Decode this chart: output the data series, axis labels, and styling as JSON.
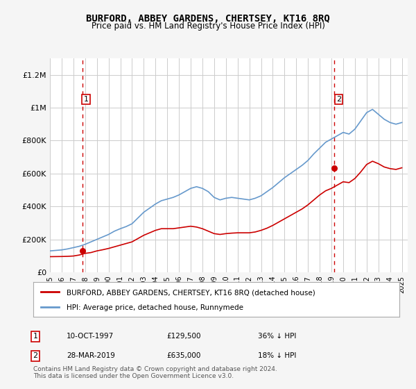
{
  "title": "BURFORD, ABBEY GARDENS, CHERTSEY, KT16 8RQ",
  "subtitle": "Price paid vs. HM Land Registry's House Price Index (HPI)",
  "legend_line1": "BURFORD, ABBEY GARDENS, CHERTSEY, KT16 8RQ (detached house)",
  "legend_line2": "HPI: Average price, detached house, Runnymede",
  "annotation1_label": "1",
  "annotation1_date": "10-OCT-1997",
  "annotation1_price": "£129,500",
  "annotation1_hpi": "36% ↓ HPI",
  "annotation2_label": "2",
  "annotation2_date": "28-MAR-2019",
  "annotation2_price": "£635,000",
  "annotation2_hpi": "18% ↓ HPI",
  "footer": "Contains HM Land Registry data © Crown copyright and database right 2024.\nThis data is licensed under the Open Government Licence v3.0.",
  "hpi_color": "#6699cc",
  "price_color": "#cc0000",
  "dashed_line_color": "#cc0000",
  "background_color": "#f5f5f5",
  "plot_bg_color": "#ffffff",
  "grid_color": "#cccccc",
  "ylim": [
    0,
    1300000
  ],
  "yticks": [
    0,
    200000,
    400000,
    600000,
    800000,
    1000000,
    1200000
  ],
  "ytick_labels": [
    "£0",
    "£200K",
    "£400K",
    "£600K",
    "£800K",
    "£1M",
    "£1.2M"
  ],
  "sale1_x": 1997.77,
  "sale1_y": 129500,
  "sale2_x": 2019.23,
  "sale2_y": 635000,
  "hpi_x": [
    1995,
    1995.5,
    1996,
    1996.5,
    1997,
    1997.5,
    1998,
    1998.5,
    1999,
    1999.5,
    2000,
    2000.5,
    2001,
    2001.5,
    2002,
    2002.5,
    2003,
    2003.5,
    2004,
    2004.5,
    2005,
    2005.5,
    2006,
    2006.5,
    2007,
    2007.5,
    2008,
    2008.5,
    2009,
    2009.5,
    2010,
    2010.5,
    2011,
    2011.5,
    2012,
    2012.5,
    2013,
    2013.5,
    2014,
    2014.5,
    2015,
    2015.5,
    2016,
    2016.5,
    2017,
    2017.5,
    2018,
    2018.5,
    2019,
    2019.5,
    2020,
    2020.5,
    2021,
    2021.5,
    2022,
    2022.5,
    2023,
    2023.5,
    2024,
    2024.5,
    2025
  ],
  "hpi_y": [
    130000,
    133000,
    136000,
    142000,
    150000,
    158000,
    170000,
    185000,
    200000,
    215000,
    230000,
    250000,
    265000,
    278000,
    295000,
    330000,
    365000,
    390000,
    415000,
    435000,
    445000,
    455000,
    470000,
    490000,
    510000,
    520000,
    510000,
    490000,
    455000,
    440000,
    450000,
    455000,
    450000,
    445000,
    440000,
    450000,
    465000,
    490000,
    515000,
    545000,
    575000,
    600000,
    625000,
    650000,
    680000,
    720000,
    755000,
    790000,
    810000,
    830000,
    850000,
    840000,
    870000,
    920000,
    970000,
    990000,
    960000,
    930000,
    910000,
    900000,
    910000
  ],
  "price_x": [
    1995,
    1995.5,
    1996,
    1996.5,
    1997,
    1997.5,
    1998,
    1998.5,
    1999,
    1999.5,
    2000,
    2000.5,
    2001,
    2001.5,
    2002,
    2002.5,
    2003,
    2003.5,
    2004,
    2004.5,
    2005,
    2005.5,
    2006,
    2006.5,
    2007,
    2007.5,
    2008,
    2008.5,
    2009,
    2009.5,
    2010,
    2010.5,
    2011,
    2011.5,
    2012,
    2012.5,
    2013,
    2013.5,
    2014,
    2014.5,
    2015,
    2015.5,
    2016,
    2016.5,
    2017,
    2017.5,
    2018,
    2018.5,
    2019,
    2019.5,
    2020,
    2020.5,
    2021,
    2021.5,
    2022,
    2022.5,
    2023,
    2023.5,
    2024,
    2024.5,
    2025
  ],
  "price_y": [
    95000,
    95500,
    96000,
    97000,
    99000,
    105000,
    115000,
    120000,
    130000,
    137000,
    145000,
    155000,
    165000,
    175000,
    185000,
    205000,
    225000,
    240000,
    255000,
    265000,
    265000,
    265000,
    270000,
    275000,
    280000,
    275000,
    265000,
    250000,
    235000,
    230000,
    235000,
    238000,
    240000,
    240000,
    240000,
    245000,
    255000,
    268000,
    285000,
    305000,
    325000,
    345000,
    365000,
    385000,
    410000,
    440000,
    470000,
    495000,
    510000,
    530000,
    550000,
    545000,
    570000,
    610000,
    655000,
    675000,
    660000,
    640000,
    630000,
    625000,
    635000
  ],
  "xtick_years": [
    1995,
    1996,
    1997,
    1998,
    1999,
    2000,
    2001,
    2002,
    2003,
    2004,
    2005,
    2006,
    2007,
    2008,
    2009,
    2010,
    2011,
    2012,
    2013,
    2014,
    2015,
    2016,
    2017,
    2018,
    2019,
    2020,
    2021,
    2022,
    2023,
    2024,
    2025
  ]
}
